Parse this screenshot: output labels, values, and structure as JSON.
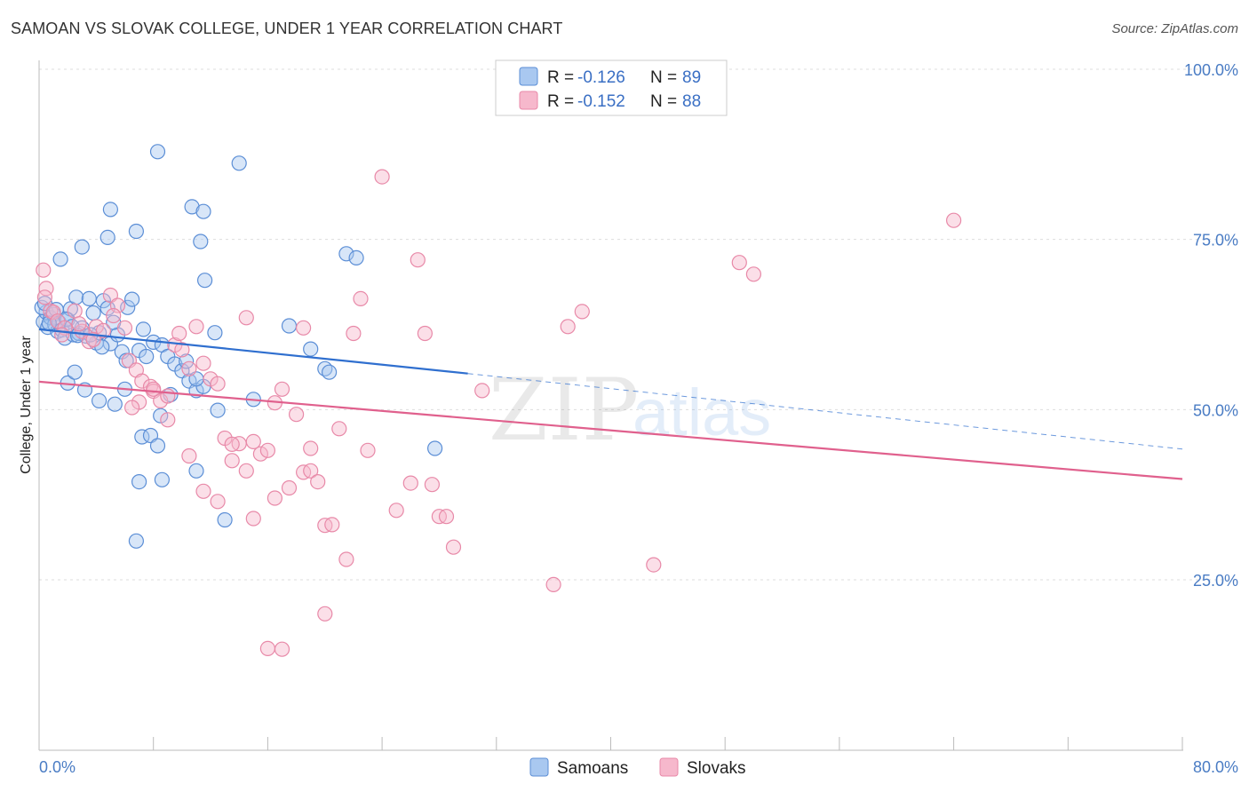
{
  "header": {
    "title": "SAMOAN VS SLOVAK COLLEGE, UNDER 1 YEAR CORRELATION CHART",
    "source": "Source: ZipAtlas.com"
  },
  "watermark": {
    "zip": "ZIP",
    "atlas": "atlas"
  },
  "legend": {
    "samoans": {
      "r_label": "R =",
      "r_value": "-0.126",
      "n_label": "N =",
      "n_value": "89"
    },
    "slovaks": {
      "r_label": "R =",
      "r_value": "-0.152",
      "n_label": "N =",
      "n_value": "88"
    }
  },
  "colors": {
    "samoans_fill": "#a9c8f0",
    "samoans_stroke": "#5b8ed6",
    "samoans_line": "#2f6fcf",
    "slovaks_fill": "#f6b8cc",
    "slovaks_stroke": "#e889a8",
    "slovaks_line": "#e0608d",
    "tick_text": "#4a7cc4",
    "grid": "#dddddd"
  },
  "chart_data": {
    "type": "scatter",
    "title": "SAMOAN VS SLOVAK COLLEGE, UNDER 1 YEAR CORRELATION CHART",
    "xlabel": "",
    "ylabel": "College, Under 1 year",
    "xlim": [
      0,
      80
    ],
    "ylim": [
      0,
      105
    ],
    "x_tick_labels": [
      "0.0%",
      "80.0%"
    ],
    "y_tick_labels": [
      "25.0%",
      "50.0%",
      "75.0%",
      "100.0%"
    ],
    "y_ticks": [
      25,
      50,
      75,
      100
    ],
    "grid": "horizontal dashed",
    "legend_position": "top-center",
    "series": [
      {
        "name": "Samoans",
        "r": -0.126,
        "n": 89,
        "trend": {
          "x": [
            0,
            30
          ],
          "y": [
            61.8,
            55.3
          ],
          "dashed_extension": {
            "x": [
              30,
              80
            ],
            "y": [
              55.3,
              44.2
            ]
          }
        },
        "points": [
          [
            0.3,
            62.9
          ],
          [
            0.5,
            64.3
          ],
          [
            0.6,
            62.1
          ],
          [
            0.8,
            63.5
          ],
          [
            1.0,
            64.0
          ],
          [
            1.1,
            62.5
          ],
          [
            1.3,
            61.5
          ],
          [
            1.4,
            62.8
          ],
          [
            1.6,
            61.7
          ],
          [
            1.8,
            60.5
          ],
          [
            2.0,
            63.2
          ],
          [
            2.2,
            64.8
          ],
          [
            2.4,
            61.0
          ],
          [
            2.6,
            66.5
          ],
          [
            2.8,
            61.2
          ],
          [
            3.0,
            62.0
          ],
          [
            3.3,
            60.8
          ],
          [
            3.5,
            66.3
          ],
          [
            3.8,
            64.2
          ],
          [
            4.0,
            59.8
          ],
          [
            4.2,
            61.3
          ],
          [
            4.5,
            66.0
          ],
          [
            4.8,
            64.9
          ],
          [
            5.0,
            59.7
          ],
          [
            5.5,
            61.0
          ],
          [
            5.8,
            58.5
          ],
          [
            6.2,
            65.0
          ],
          [
            6.5,
            66.2
          ],
          [
            7.0,
            58.7
          ],
          [
            7.5,
            57.8
          ],
          [
            8.0,
            59.9
          ],
          [
            8.6,
            59.5
          ],
          [
            9.0,
            57.8
          ],
          [
            9.5,
            56.7
          ],
          [
            10.0,
            55.7
          ],
          [
            10.5,
            54.2
          ],
          [
            11.0,
            52.8
          ],
          [
            11.5,
            53.4
          ],
          [
            3.2,
            52.9
          ],
          [
            4.2,
            51.3
          ],
          [
            5.3,
            50.8
          ],
          [
            6.0,
            53.0
          ],
          [
            2.0,
            53.9
          ],
          [
            2.5,
            55.5
          ],
          [
            1.5,
            72.1
          ],
          [
            3.0,
            73.9
          ],
          [
            4.8,
            75.3
          ],
          [
            5.0,
            79.4
          ],
          [
            6.8,
            76.2
          ],
          [
            8.3,
            87.9
          ],
          [
            10.7,
            79.8
          ],
          [
            11.5,
            79.1
          ],
          [
            11.3,
            74.7
          ],
          [
            11.6,
            69.0
          ],
          [
            14.0,
            86.2
          ],
          [
            10.3,
            57.1
          ],
          [
            12.5,
            49.9
          ],
          [
            11.0,
            54.5
          ],
          [
            8.5,
            49.1
          ],
          [
            7.2,
            46.0
          ],
          [
            7.8,
            46.2
          ],
          [
            8.3,
            44.7
          ],
          [
            8.6,
            39.7
          ],
          [
            7.0,
            39.4
          ],
          [
            6.8,
            30.7
          ],
          [
            11.0,
            41.0
          ],
          [
            13.0,
            33.8
          ],
          [
            15.0,
            51.5
          ],
          [
            17.5,
            62.3
          ],
          [
            19.0,
            58.9
          ],
          [
            20.0,
            56.0
          ],
          [
            20.3,
            55.5
          ],
          [
            21.5,
            72.9
          ],
          [
            22.2,
            72.3
          ],
          [
            27.7,
            44.3
          ],
          [
            0.2,
            65.0
          ],
          [
            0.4,
            65.6
          ],
          [
            0.7,
            62.7
          ],
          [
            1.2,
            64.7
          ],
          [
            1.9,
            63.3
          ],
          [
            2.3,
            62.2
          ],
          [
            2.7,
            60.9
          ],
          [
            3.6,
            61.0
          ],
          [
            4.4,
            59.2
          ],
          [
            5.2,
            62.8
          ],
          [
            6.1,
            57.2
          ],
          [
            7.3,
            61.8
          ],
          [
            9.2,
            52.2
          ],
          [
            12.3,
            61.3
          ]
        ]
      },
      {
        "name": "Slovaks",
        "r": -0.152,
        "n": 88,
        "trend": {
          "x": [
            0,
            80
          ],
          "y": [
            54.1,
            39.8
          ]
        },
        "points": [
          [
            0.3,
            70.5
          ],
          [
            0.5,
            67.8
          ],
          [
            0.4,
            66.5
          ],
          [
            0.8,
            64.5
          ],
          [
            1.0,
            64.3
          ],
          [
            1.3,
            63.0
          ],
          [
            1.8,
            62.0
          ],
          [
            2.5,
            64.5
          ],
          [
            3.0,
            61.5
          ],
          [
            3.5,
            60.0
          ],
          [
            4.0,
            62.2
          ],
          [
            4.5,
            61.6
          ],
          [
            5.0,
            66.8
          ],
          [
            5.5,
            65.3
          ],
          [
            6.0,
            62.0
          ],
          [
            6.3,
            57.2
          ],
          [
            6.8,
            55.8
          ],
          [
            7.2,
            54.2
          ],
          [
            7.8,
            53.4
          ],
          [
            8.0,
            52.7
          ],
          [
            8.5,
            51.3
          ],
          [
            9.0,
            52.0
          ],
          [
            9.5,
            59.5
          ],
          [
            10.0,
            58.8
          ],
          [
            10.5,
            56.0
          ],
          [
            11.0,
            62.2
          ],
          [
            11.5,
            56.8
          ],
          [
            12.0,
            54.5
          ],
          [
            12.5,
            53.8
          ],
          [
            13.0,
            45.8
          ],
          [
            13.5,
            42.5
          ],
          [
            14.0,
            45.0
          ],
          [
            14.5,
            41.0
          ],
          [
            15.0,
            45.3
          ],
          [
            15.5,
            43.5
          ],
          [
            16.0,
            44.0
          ],
          [
            16.5,
            51.0
          ],
          [
            17.0,
            53.0
          ],
          [
            17.5,
            38.5
          ],
          [
            18.0,
            49.3
          ],
          [
            18.5,
            40.8
          ],
          [
            19.0,
            41.0
          ],
          [
            19.5,
            39.4
          ],
          [
            20.0,
            33.0
          ],
          [
            20.5,
            33.1
          ],
          [
            21.0,
            47.2
          ],
          [
            21.5,
            28.0
          ],
          [
            22.0,
            61.2
          ],
          [
            22.5,
            66.3
          ],
          [
            23.0,
            44.0
          ],
          [
            24.0,
            84.2
          ],
          [
            25.0,
            35.2
          ],
          [
            26.0,
            39.2
          ],
          [
            26.5,
            72.0
          ],
          [
            27.0,
            61.2
          ],
          [
            27.5,
            39.0
          ],
          [
            28.0,
            34.3
          ],
          [
            28.5,
            34.3
          ],
          [
            29.0,
            29.8
          ],
          [
            31.0,
            52.8
          ],
          [
            36.0,
            24.3
          ],
          [
            37.0,
            62.2
          ],
          [
            38.0,
            64.4
          ],
          [
            43.0,
            27.2
          ],
          [
            49.0,
            71.6
          ],
          [
            50.0,
            69.9
          ],
          [
            64.0,
            77.8
          ],
          [
            14.5,
            63.5
          ],
          [
            15.0,
            34.0
          ],
          [
            16.0,
            14.9
          ],
          [
            17.0,
            14.8
          ],
          [
            20.0,
            20.0
          ],
          [
            12.5,
            36.5
          ],
          [
            11.5,
            38.0
          ],
          [
            10.5,
            43.2
          ],
          [
            9.0,
            48.5
          ],
          [
            8.0,
            53.0
          ],
          [
            7.0,
            51.1
          ],
          [
            6.5,
            50.3
          ],
          [
            13.5,
            44.9
          ],
          [
            16.5,
            37.0
          ],
          [
            19.0,
            44.3
          ],
          [
            1.6,
            61.0
          ],
          [
            2.8,
            62.6
          ],
          [
            3.8,
            60.3
          ],
          [
            5.2,
            63.8
          ],
          [
            9.8,
            61.2
          ],
          [
            18.5,
            62.0
          ]
        ]
      }
    ]
  },
  "bottom_legend": {
    "samoans": "Samoans",
    "slovaks": "Slovaks"
  },
  "axis": {
    "x_min_label": "0.0%",
    "x_max_label": "80.0%",
    "y_label": "College, Under 1 year"
  }
}
